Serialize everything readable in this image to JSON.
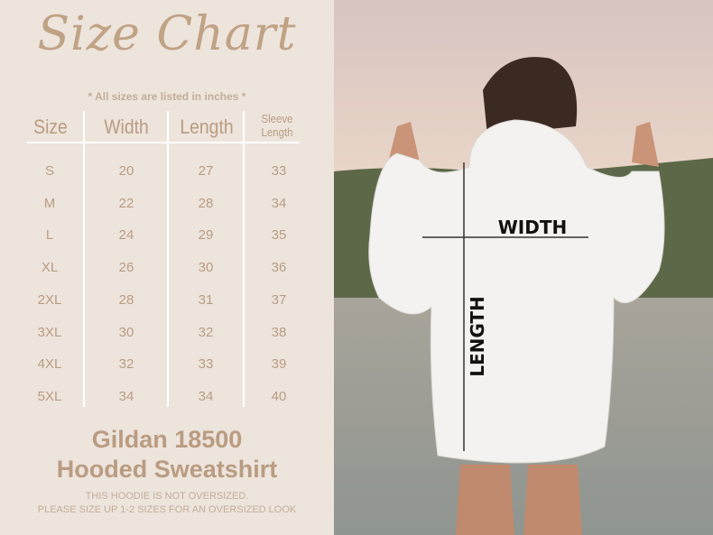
{
  "title": "Size Chart",
  "note": "* All sizes are listed in inches *",
  "table": {
    "headers": [
      "Size",
      "Width",
      "Length",
      "Sleeve Length"
    ],
    "rows": [
      [
        "S",
        "20",
        "27",
        "33"
      ],
      [
        "M",
        "22",
        "28",
        "34"
      ],
      [
        "L",
        "24",
        "29",
        "35"
      ],
      [
        "XL",
        "26",
        "30",
        "36"
      ],
      [
        "2XL",
        "28",
        "31",
        "37"
      ],
      [
        "3XL",
        "30",
        "32",
        "38"
      ],
      [
        "4XL",
        "32",
        "33",
        "39"
      ],
      [
        "5XL",
        "34",
        "34",
        "40"
      ]
    ]
  },
  "brand": {
    "line1": "Gildan 18500",
    "line2": "Hooded Sweatshirt"
  },
  "disclaimer": {
    "line1": "THIS HOODIE IS NOT OVERSIZED.",
    "line2": "PLEASE SIZE UP 1-2 SIZES FOR AN OVERSIZED LOOK"
  },
  "photo": {
    "width_label": "WIDTH",
    "length_label": "LENGTH"
  },
  "colors": {
    "background": "#ede4dc",
    "text": "#b99c82"
  }
}
